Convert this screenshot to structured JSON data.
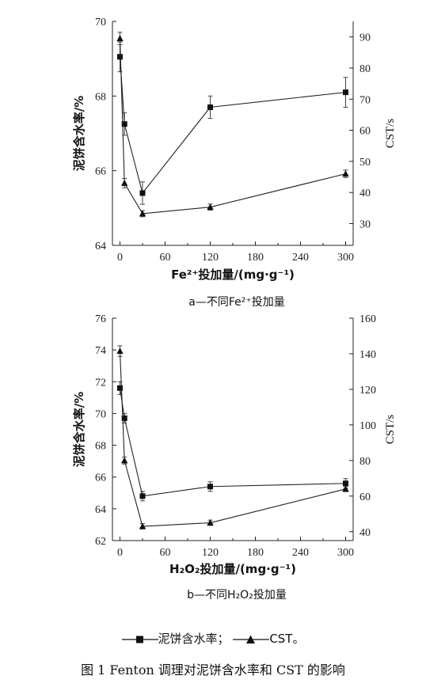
{
  "chart_data": [
    {
      "type": "line",
      "xlabel": "Fe²⁺投加量/(mg·g⁻¹)",
      "ylabel": "泥饼含水率/%",
      "y2label": "CST/s",
      "xticks": [
        0,
        60,
        120,
        180,
        240,
        300
      ],
      "yticks": [
        64,
        66,
        68,
        70
      ],
      "y2ticks": [
        30,
        40,
        50,
        60,
        70,
        80,
        90
      ],
      "xlim": [
        -10,
        310
      ],
      "ylim": [
        64,
        70
      ],
      "y2lim": [
        23,
        95
      ],
      "series": [
        {
          "name": "泥饼含水率",
          "axis": "left",
          "marker": "square",
          "x": [
            0,
            6,
            30,
            120,
            300
          ],
          "y": [
            69.05,
            67.25,
            65.4,
            67.7,
            68.1
          ],
          "err": [
            0.4,
            0.3,
            0.3,
            0.3,
            0.4
          ]
        },
        {
          "name": "CST",
          "axis": "right",
          "marker": "triangle",
          "x": [
            0,
            6,
            30,
            120,
            300
          ],
          "y": [
            89.5,
            43.0,
            33.2,
            35.3,
            46.0
          ],
          "err": [
            2.0,
            1.5,
            1.0,
            1.0,
            1.2
          ]
        }
      ],
      "caption": "a—不同Fe²⁺投加量",
      "grid": false
    },
    {
      "type": "line",
      "xlabel": "H₂O₂投加量/(mg·g⁻¹)",
      "ylabel": "泥饼含水率/%",
      "y2label": "CST/s",
      "xticks": [
        0,
        60,
        120,
        180,
        240,
        300
      ],
      "yticks": [
        62,
        64,
        66,
        68,
        70,
        72,
        74,
        76
      ],
      "y2ticks": [
        40,
        60,
        80,
        100,
        120,
        140,
        160
      ],
      "xlim": [
        -10,
        310
      ],
      "ylim": [
        62,
        76
      ],
      "y2lim": [
        35,
        160
      ],
      "series": [
        {
          "name": "泥饼含水率",
          "axis": "left",
          "marker": "square",
          "x": [
            0,
            6,
            30,
            120,
            300
          ],
          "y": [
            71.6,
            69.7,
            64.8,
            65.4,
            65.6
          ],
          "err": [
            0.4,
            0.3,
            0.3,
            0.3,
            0.3
          ]
        },
        {
          "name": "CST",
          "axis": "right",
          "marker": "triangle",
          "x": [
            0,
            6,
            30,
            120,
            300
          ],
          "y": [
            141.5,
            80.0,
            43.0,
            45.0,
            64.0
          ],
          "err": [
            3.0,
            2.0,
            1.5,
            1.5,
            1.5
          ]
        }
      ],
      "caption": "b—不同H₂O₂投加量",
      "grid": false
    }
  ],
  "legend": {
    "moisture": "泥饼含水率；",
    "cst": "CST。"
  },
  "figure_caption": "图 1   Fenton 调理对泥饼含水率和 CST 的影响"
}
